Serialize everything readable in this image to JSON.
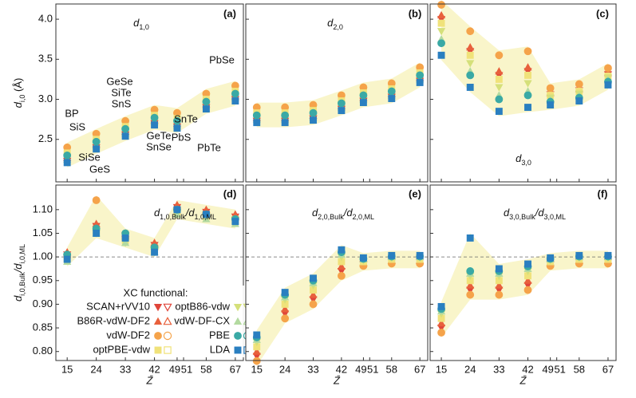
{
  "chart_data": [
    {
      "type": "scatter",
      "panel_label": "(a)",
      "title": [
        "d",
        "1,0"
      ],
      "ylabel": [
        "d",
        "i,0",
        " (Å)"
      ],
      "annotations": [
        "BP",
        "SiS",
        "SiSe",
        "GeS",
        "GeSe",
        "SiTe",
        "SnS",
        "GeTe",
        "SnSe",
        "SnTe",
        "PbS",
        "PbTe",
        "PbSe"
      ],
      "x": [
        15,
        24,
        33,
        42,
        49,
        58,
        67
      ],
      "xlim": [
        11.5,
        69.5
      ],
      "xticks": [
        15,
        24,
        33,
        42,
        49,
        51,
        58,
        67
      ],
      "ylim": [
        1.97,
        4.19
      ],
      "yticks": [
        {
          "value": 2.5,
          "label": "2.5"
        },
        {
          "value": 3,
          "label": "3.0"
        },
        {
          "value": 3.5,
          "label": "3.5"
        },
        {
          "value": 4,
          "label": "4.0"
        }
      ],
      "series": [
        {
          "name": "SCAN+rVV10",
          "color": "#e0453a",
          "marker": "tri-down",
          "values": [
            2.23,
            2.4,
            2.56,
            2.7,
            2.66,
            2.9,
            3.0
          ]
        },
        {
          "name": "B86R-vdW-DF2",
          "color": "#e8603c",
          "marker": "tri-up",
          "values": [
            2.27,
            2.44,
            2.6,
            2.74,
            2.7,
            2.94,
            3.04
          ]
        },
        {
          "name": "vdW-DF2",
          "color": "#f5a34a",
          "marker": "circle",
          "values": [
            2.4,
            2.57,
            2.73,
            2.87,
            2.83,
            3.07,
            3.17
          ]
        },
        {
          "name": "optPBE-vdw",
          "color": "#f0e27a",
          "marker": "square",
          "values": [
            2.33,
            2.5,
            2.66,
            2.8,
            2.76,
            3.0,
            3.1
          ]
        },
        {
          "name": "optB86-vdw",
          "color": "#d5e07a",
          "marker": "tri-down",
          "values": [
            2.28,
            2.45,
            2.61,
            2.75,
            2.71,
            2.95,
            3.05
          ]
        },
        {
          "name": "vdW-DF-CX",
          "color": "#b3daa0",
          "marker": "tri-up",
          "values": [
            2.25,
            2.42,
            2.58,
            2.72,
            2.68,
            2.92,
            3.02
          ]
        },
        {
          "name": "PBE",
          "color": "#3aa9a5",
          "marker": "circle",
          "values": [
            2.3,
            2.47,
            2.63,
            2.77,
            2.73,
            2.97,
            3.07
          ]
        },
        {
          "name": "LDA",
          "color": "#2a7fc0",
          "marker": "square",
          "values": [
            2.21,
            2.38,
            2.54,
            2.68,
            2.64,
            2.88,
            2.98
          ]
        }
      ]
    },
    {
      "type": "scatter",
      "panel_label": "(b)",
      "title": [
        "d",
        "2,0"
      ],
      "x": [
        15,
        24,
        33,
        42,
        49,
        58,
        67
      ],
      "xlim": [
        11.5,
        69.5
      ],
      "xticks": [
        15,
        24,
        33,
        42,
        49,
        51,
        58,
        67
      ],
      "ylim": [
        1.97,
        4.19
      ],
      "yticks": [
        2.5,
        3,
        3.5,
        4
      ],
      "series": [
        {
          "name": "SCAN+rVV10",
          "color": "#e0453a",
          "marker": "tri-down",
          "values": [
            2.73,
            2.73,
            2.76,
            2.88,
            2.98,
            3.03,
            3.23
          ]
        },
        {
          "name": "B86R-vdW-DF2",
          "color": "#e8603c",
          "marker": "tri-up",
          "values": [
            2.77,
            2.77,
            2.8,
            2.92,
            3.02,
            3.07,
            3.27
          ]
        },
        {
          "name": "vdW-DF2",
          "color": "#f5a34a",
          "marker": "circle",
          "values": [
            2.9,
            2.9,
            2.93,
            3.05,
            3.15,
            3.2,
            3.4
          ]
        },
        {
          "name": "optPBE-vdw",
          "color": "#f0e27a",
          "marker": "square",
          "values": [
            2.83,
            2.83,
            2.86,
            2.98,
            3.08,
            3.13,
            3.33
          ]
        },
        {
          "name": "optB86-vdw",
          "color": "#d5e07a",
          "marker": "tri-down",
          "values": [
            2.78,
            2.78,
            2.81,
            2.93,
            3.03,
            3.08,
            3.28
          ]
        },
        {
          "name": "vdW-DF-CX",
          "color": "#b3daa0",
          "marker": "tri-up",
          "values": [
            2.75,
            2.75,
            2.78,
            2.9,
            3.0,
            3.05,
            3.25
          ]
        },
        {
          "name": "PBE",
          "color": "#3aa9a5",
          "marker": "circle",
          "values": [
            2.8,
            2.8,
            2.83,
            2.95,
            3.05,
            3.1,
            3.3
          ]
        },
        {
          "name": "LDA",
          "color": "#2a7fc0",
          "marker": "square",
          "values": [
            2.71,
            2.71,
            2.74,
            2.86,
            2.96,
            3.01,
            3.21
          ]
        }
      ]
    },
    {
      "type": "scatter",
      "panel_label": "(c)",
      "title": [
        "d",
        "3,0"
      ],
      "x": [
        15,
        24,
        33,
        42,
        49,
        58,
        67
      ],
      "xlim": [
        11.5,
        69.5
      ],
      "xticks": [
        15,
        24,
        33,
        42,
        49,
        51,
        58,
        67
      ],
      "ylim": [
        1.97,
        4.19
      ],
      "yticks": [
        2.5,
        3,
        3.5,
        4
      ],
      "series": [
        {
          "name": "SCAN+rVV10",
          "color": "#e0453a",
          "marker": "tri-down",
          "values": [
            4.0,
            3.6,
            3.3,
            3.35,
            3.06,
            3.11,
            3.31
          ]
        },
        {
          "name": "B86R-vdW-DF2",
          "color": "#e8603c",
          "marker": "tri-up",
          "values": [
            4.05,
            3.65,
            3.35,
            3.4,
            3.08,
            3.13,
            3.33
          ]
        },
        {
          "name": "vdW-DF2",
          "color": "#f5a34a",
          "marker": "circle",
          "values": [
            4.18,
            3.85,
            3.55,
            3.6,
            3.14,
            3.19,
            3.39
          ]
        },
        {
          "name": "optPBE-vdw",
          "color": "#f0e27a",
          "marker": "square",
          "values": [
            3.95,
            3.55,
            3.25,
            3.3,
            3.05,
            3.1,
            3.29
          ]
        },
        {
          "name": "optB86-vdw",
          "color": "#d5e07a",
          "marker": "tri-down",
          "values": [
            3.85,
            3.45,
            3.15,
            3.2,
            3.02,
            3.07,
            3.27
          ]
        },
        {
          "name": "vdW-DF-CX",
          "color": "#b3daa0",
          "marker": "tri-up",
          "values": [
            3.75,
            3.35,
            3.05,
            3.1,
            2.99,
            3.04,
            3.24
          ]
        },
        {
          "name": "PBE",
          "color": "#3aa9a5",
          "marker": "circle",
          "values": [
            3.7,
            3.3,
            3.0,
            3.05,
            2.97,
            3.02,
            3.22
          ]
        },
        {
          "name": "LDA",
          "color": "#2a7fc0",
          "marker": "square",
          "values": [
            3.55,
            3.15,
            2.85,
            2.9,
            2.93,
            2.98,
            3.18
          ]
        }
      ]
    },
    {
      "type": "scatter",
      "panel_label": "(d)",
      "title": [
        "d",
        "1,0,Bulk",
        "/d",
        "1,0,ML"
      ],
      "ylabel": [
        "d",
        "i,0,Bulk",
        "/d",
        "i,0,ML"
      ],
      "legend_title": "XC functional:",
      "xlabel": "Z̄",
      "hline": 1,
      "x": [
        15,
        24,
        33,
        42,
        49,
        58,
        67
      ],
      "xlim": [
        11.5,
        69.5
      ],
      "xticks": [
        15,
        24,
        33,
        42,
        49,
        51,
        58,
        67
      ],
      "ylim": [
        0.781,
        1.152
      ],
      "yticks": [
        {
          "value": 0.8,
          "label": "0.80"
        },
        {
          "value": 0.85,
          "label": "0.85"
        },
        {
          "value": 0.9,
          "label": "0.90"
        },
        {
          "value": 0.95,
          "label": "0.95"
        },
        {
          "value": 1,
          "label": "1.00"
        },
        {
          "value": 1.05,
          "label": "1.05"
        },
        {
          "value": 1.1,
          "label": "1.10"
        }
      ],
      "series": [
        {
          "name": "SCAN+rVV10",
          "color": "#e0453a",
          "marker": "tri-down",
          "values": [
            1.005,
            1.065,
            1.045,
            1.025,
            1.105,
            1.095,
            1.085
          ]
        },
        {
          "name": "B86R-vdW-DF2",
          "color": "#e8603c",
          "marker": "tri-up",
          "values": [
            1.01,
            1.07,
            1.05,
            1.03,
            1.11,
            1.1,
            1.09
          ]
        },
        {
          "name": "vdW-DF2",
          "color": "#f5a34a",
          "marker": "circle",
          "values": [
            1.0,
            1.12,
            1.04,
            1.02,
            1.1,
            1.09,
            1.08
          ]
        },
        {
          "name": "optPBE-vdw",
          "color": "#f0e27a",
          "marker": "square",
          "values": [
            0.995,
            1.055,
            1.035,
            1.015,
            1.095,
            1.085,
            1.075
          ]
        },
        {
          "name": "optB86-vdw",
          "color": "#d5e07a",
          "marker": "tri-down",
          "values": [
            1.0,
            1.05,
            1.03,
            1.01,
            1.09,
            1.09,
            1.08
          ]
        },
        {
          "name": "vdW-DF-CX",
          "color": "#b3daa0",
          "marker": "tri-up",
          "values": [
            0.99,
            1.05,
            1.03,
            1.01,
            1.09,
            1.08,
            1.07
          ]
        },
        {
          "name": "PBE",
          "color": "#3aa9a5",
          "marker": "circle",
          "values": [
            1.005,
            1.06,
            1.05,
            1.02,
            1.1,
            1.09,
            1.08
          ]
        },
        {
          "name": "LDA",
          "color": "#2a7fc0",
          "marker": "square",
          "values": [
            0.995,
            1.05,
            1.04,
            1.01,
            1.1,
            1.09,
            1.075
          ]
        }
      ]
    },
    {
      "type": "scatter",
      "panel_label": "(e)",
      "title": [
        "d",
        "2,0,Bulk",
        "/d",
        "2,0,ML"
      ],
      "xlabel": "Z̄",
      "hline": 1,
      "x": [
        15,
        24,
        33,
        42,
        49,
        58,
        67
      ],
      "xlim": [
        11.5,
        69.5
      ],
      "xticks": [
        15,
        24,
        33,
        42,
        49,
        51,
        58,
        67
      ],
      "ylim": [
        0.781,
        1.152
      ],
      "yticks": [
        0.8,
        0.85,
        0.9,
        0.95,
        1,
        1.05,
        1.1
      ],
      "series": [
        {
          "name": "SCAN+rVV10",
          "color": "#e0453a",
          "marker": "tri-down",
          "values": [
            0.79,
            0.88,
            0.91,
            0.97,
            0.984,
            0.989,
            0.989
          ]
        },
        {
          "name": "B86R-vdW-DF2",
          "color": "#e8603c",
          "marker": "tri-up",
          "values": [
            0.8,
            0.89,
            0.92,
            0.98,
            0.987,
            0.992,
            0.992
          ]
        },
        {
          "name": "vdW-DF2",
          "color": "#f5a34a",
          "marker": "circle",
          "values": [
            0.78,
            0.87,
            0.9,
            0.96,
            0.981,
            0.986,
            0.986
          ]
        },
        {
          "name": "optPBE-vdw",
          "color": "#f0e27a",
          "marker": "square",
          "values": [
            0.81,
            0.9,
            0.93,
            0.99,
            0.99,
            0.995,
            0.995
          ]
        },
        {
          "name": "optB86-vdw",
          "color": "#d5e07a",
          "marker": "tri-down",
          "values": [
            0.82,
            0.91,
            0.94,
            1.0,
            0.993,
            0.998,
            0.998
          ]
        },
        {
          "name": "vdW-DF-CX",
          "color": "#b3daa0",
          "marker": "tri-up",
          "values": [
            0.825,
            0.915,
            0.945,
            1.005,
            0.995,
            1.0,
            1.0
          ]
        },
        {
          "name": "PBE",
          "color": "#3aa9a5",
          "marker": "circle",
          "values": [
            0.83,
            0.92,
            0.95,
            1.01,
            0.996,
            1.001,
            1.001
          ]
        },
        {
          "name": "LDA",
          "color": "#2a7fc0",
          "marker": "square",
          "values": [
            0.835,
            0.925,
            0.955,
            1.015,
            0.998,
            1.003,
            1.003
          ]
        }
      ]
    },
    {
      "type": "scatter",
      "panel_label": "(f)",
      "title": [
        "d",
        "3,0,Bulk",
        "/d",
        "3,0,ML"
      ],
      "xlabel": "Z̄",
      "hline": 1,
      "x": [
        15,
        24,
        33,
        42,
        49,
        58,
        67
      ],
      "xlim": [
        11.5,
        69.5
      ],
      "xticks": [
        15,
        24,
        33,
        42,
        49,
        51,
        58,
        67
      ],
      "ylim": [
        0.781,
        1.152
      ],
      "yticks": [
        0.8,
        0.85,
        0.9,
        0.95,
        1,
        1.05,
        1.1
      ],
      "series": [
        {
          "name": "SCAN+rVV10",
          "color": "#e0453a",
          "marker": "tri-down",
          "values": [
            0.85,
            0.93,
            0.93,
            0.94,
            0.984,
            0.989,
            0.989
          ]
        },
        {
          "name": "B86R-vdW-DF2",
          "color": "#e8603c",
          "marker": "tri-up",
          "values": [
            0.86,
            0.94,
            0.94,
            0.95,
            0.987,
            0.992,
            0.992
          ]
        },
        {
          "name": "vdW-DF2",
          "color": "#f5a34a",
          "marker": "circle",
          "values": [
            0.84,
            0.92,
            0.92,
            0.93,
            0.981,
            0.986,
            0.986
          ]
        },
        {
          "name": "optPBE-vdw",
          "color": "#f0e27a",
          "marker": "square",
          "values": [
            0.87,
            0.95,
            0.95,
            0.96,
            0.99,
            0.995,
            0.995
          ]
        },
        {
          "name": "optB86-vdw",
          "color": "#d5e07a",
          "marker": "tri-down",
          "values": [
            0.88,
            0.96,
            0.96,
            0.97,
            0.993,
            0.998,
            0.998
          ]
        },
        {
          "name": "vdW-DF-CX",
          "color": "#b3daa0",
          "marker": "tri-up",
          "values": [
            0.885,
            0.965,
            0.965,
            0.975,
            0.995,
            1.0,
            1.0
          ]
        },
        {
          "name": "PBE",
          "color": "#3aa9a5",
          "marker": "circle",
          "values": [
            0.89,
            0.97,
            0.97,
            0.98,
            0.996,
            1.001,
            1.001
          ]
        },
        {
          "name": "LDA",
          "color": "#2a7fc0",
          "marker": "square",
          "values": [
            0.895,
            1.04,
            0.975,
            0.985,
            0.998,
            1.003,
            1.003
          ]
        }
      ]
    }
  ]
}
